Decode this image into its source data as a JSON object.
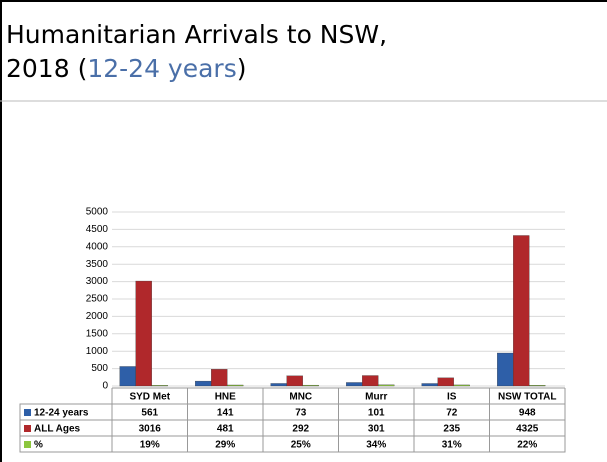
{
  "title": [
    "Humanitarian Arrivals to NSW,",
    "2018 (",
    "12-24 years",
    ")"
  ],
  "chart_data": {
    "type": "bar",
    "categories": [
      "SYD Met",
      "HNE",
      "MNC",
      "Murr",
      "IS",
      "NSW TOTAL"
    ],
    "series": [
      {
        "name": "12-24 years",
        "color": "#2e5fa8",
        "values": [
          561,
          141,
          73,
          101,
          72,
          948
        ]
      },
      {
        "name": "ALL Ages",
        "color": "#b0282b",
        "values": [
          3016,
          481,
          292,
          301,
          235,
          4325
        ]
      },
      {
        "name": "%",
        "color": "#8cc63e",
        "values": [
          19,
          29,
          25,
          34,
          31,
          22
        ],
        "value_labels": [
          "19%",
          "29%",
          "25%",
          "34%",
          "31%",
          "22%"
        ]
      }
    ],
    "ylim": [
      0,
      5000
    ],
    "yticks": [
      0,
      500,
      1000,
      1500,
      2000,
      2500,
      3000,
      3500,
      4000,
      4500,
      5000
    ],
    "grid": true
  }
}
